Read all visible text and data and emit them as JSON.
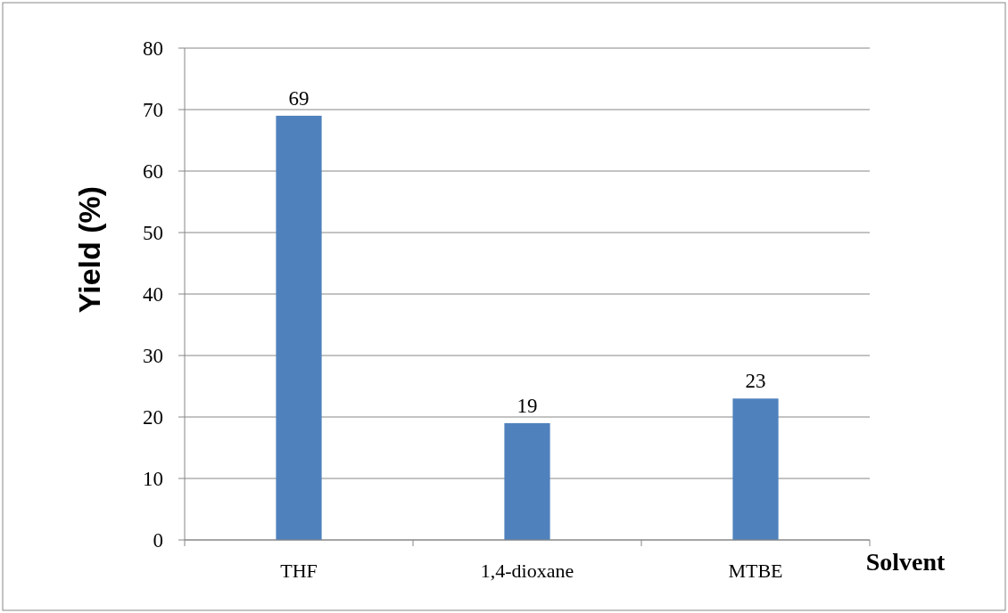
{
  "chart_data": {
    "type": "bar",
    "xlabel": "Solvent",
    "ylabel": "Yield (%)",
    "categories": [
      "THF",
      "1,4-dioxane",
      "MTBE"
    ],
    "values": [
      69,
      19,
      23
    ],
    "color": "#4f81bd",
    "ylim": [
      0,
      80
    ],
    "yticks": [
      0,
      10,
      20,
      30,
      40,
      50,
      60,
      70,
      80
    ],
    "grid": "y",
    "data_labels": true
  }
}
